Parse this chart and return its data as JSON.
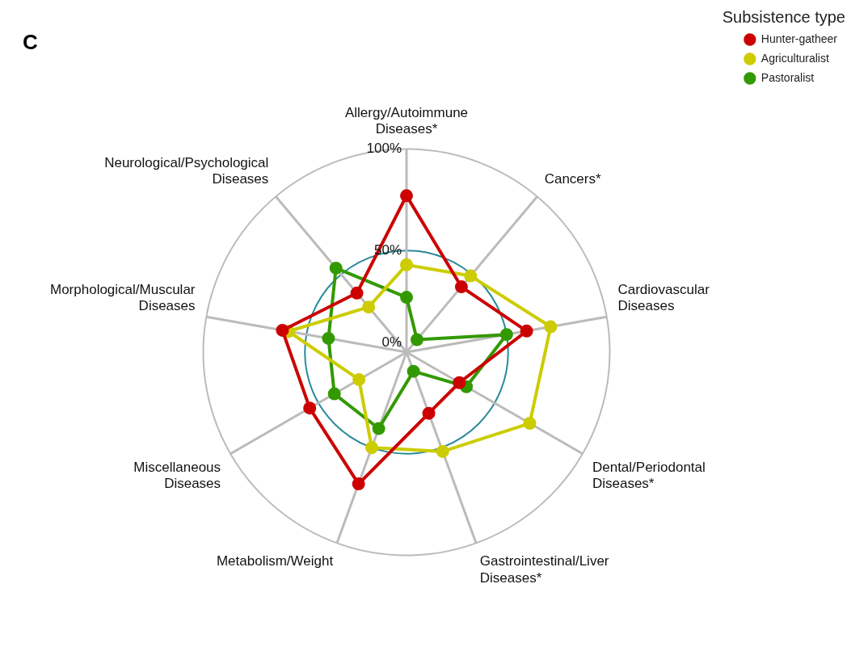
{
  "chart_data": {
    "type": "radar",
    "title": "C",
    "legend_title": "Subsistence type",
    "legend": "top right",
    "marker": "circle",
    "grid": true,
    "categories": [
      "Allergy/Autoimmune Diseases*",
      "Cancers*",
      "Cardiovascular Diseases",
      "Dental/Periodontal Diseases*",
      "Gastrointestinal/Liver Diseases*",
      "Metabolism/Weight",
      "Miscellaneous Diseases",
      "Morphological/Muscular Diseases",
      "Neurological/Psychological Diseases"
    ],
    "ylim": [
      0,
      100
    ],
    "yticks": [
      {
        "value": 0,
        "label": "0%"
      },
      {
        "value": 50,
        "label": "50%"
      },
      {
        "value": 100,
        "label": "100%"
      }
    ],
    "series": [
      {
        "name": "Hunter-gatheer",
        "color": "#cc0000",
        "values": [
          77,
          42,
          60,
          30,
          32,
          69,
          55,
          62,
          38
        ]
      },
      {
        "name": "Agriculturalist",
        "color": "#cccc00",
        "values": [
          43,
          49,
          72,
          70,
          52,
          50,
          27,
          59,
          29
        ]
      },
      {
        "name": "Pastoralist",
        "color": "#339900",
        "values": [
          27,
          8,
          50,
          34,
          10,
          40,
          41,
          39,
          54
        ]
      }
    ]
  }
}
